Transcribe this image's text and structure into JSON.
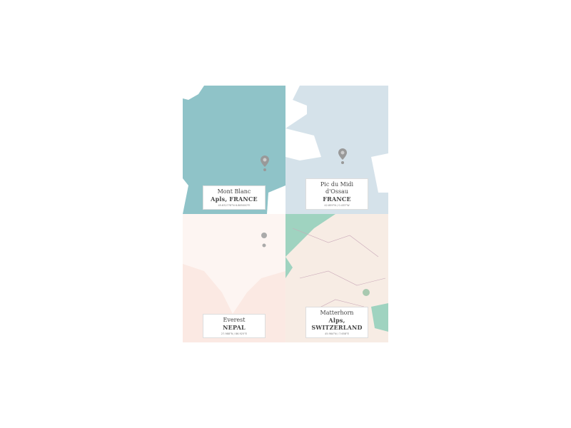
{
  "maps": [
    {
      "name": "Mont Blanc",
      "sub": "Apls, FRANCE",
      "coords": "45.832778°N 6.865000°E",
      "color": "#8fc3c8"
    },
    {
      "name": "Pic du Midi d'Ossau",
      "sub": "FRANCE",
      "coords": "42.859°N / 0.433°W",
      "color": "#d5e2ea"
    },
    {
      "name": "Everest",
      "sub": "NEPAL",
      "coords": "27.988°N / 86.925°E",
      "color": "#fbe9e3"
    },
    {
      "name": "Matterhorn",
      "sub": "Alps, SWITZERLAND",
      "coords": "45.984°N / 7.658°E",
      "color": "#f7ece4"
    }
  ]
}
